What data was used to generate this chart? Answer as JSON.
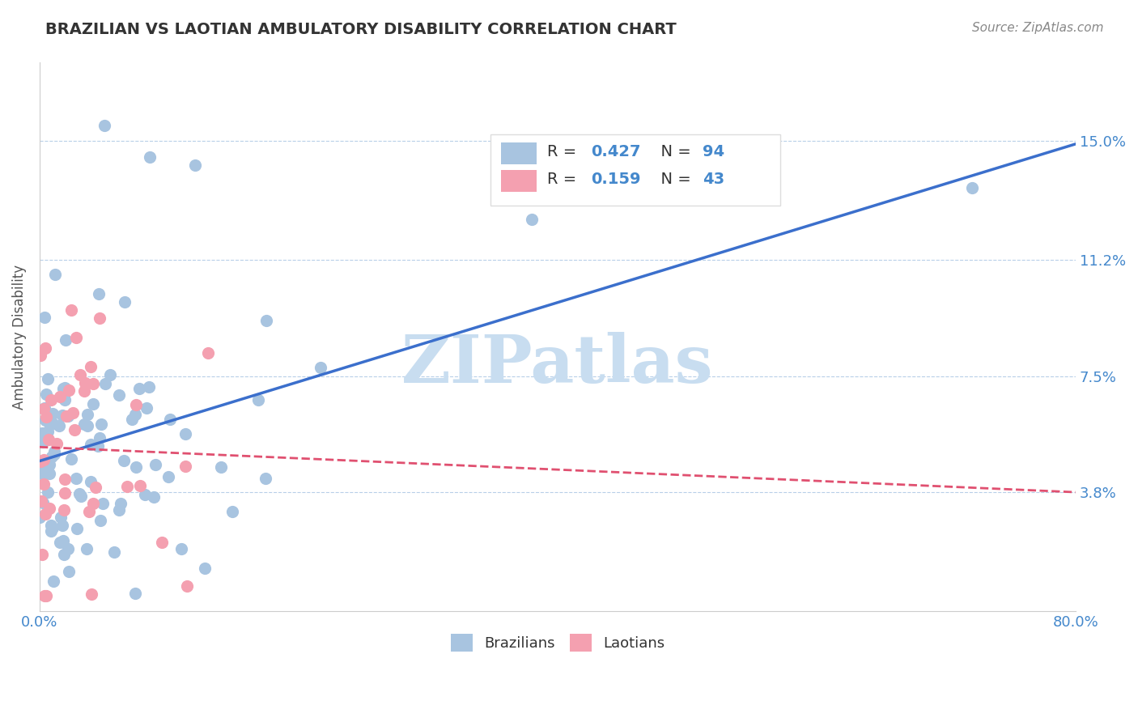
{
  "title": "BRAZILIAN VS LAOTIAN AMBULATORY DISABILITY CORRELATION CHART",
  "source_text": "Source: ZipAtlas.com",
  "xlabel": "",
  "ylabel": "Ambulatory Disability",
  "xlim": [
    0.0,
    0.8
  ],
  "ylim": [
    0.0,
    0.175
  ],
  "xtick_labels": [
    "0.0%",
    "80.0%"
  ],
  "ytick_values": [
    0.038,
    0.075,
    0.112,
    0.15
  ],
  "ytick_labels": [
    "3.8%",
    "7.5%",
    "11.2%",
    "15.0%"
  ],
  "legend_entries": [
    {
      "label": "R = 0.427   N = 94",
      "color": "#a8c4e0"
    },
    {
      "label": "R =  0.159   N = 43",
      "color": "#f4a0b0"
    }
  ],
  "brazilian_color": "#a8c4e0",
  "laotian_color": "#f4a0b0",
  "brazilian_line_color": "#3b6fcc",
  "laotian_line_color": "#e05070",
  "watermark": "ZIPatlas",
  "watermark_color": "#c8ddf0",
  "background_color": "#ffffff",
  "title_color": "#333333",
  "axis_label_color": "#555555",
  "tick_label_color": "#4488cc",
  "R_brazilian": 0.427,
  "N_brazilian": 94,
  "R_laotian": 0.159,
  "N_laotian": 43,
  "seed": 42
}
